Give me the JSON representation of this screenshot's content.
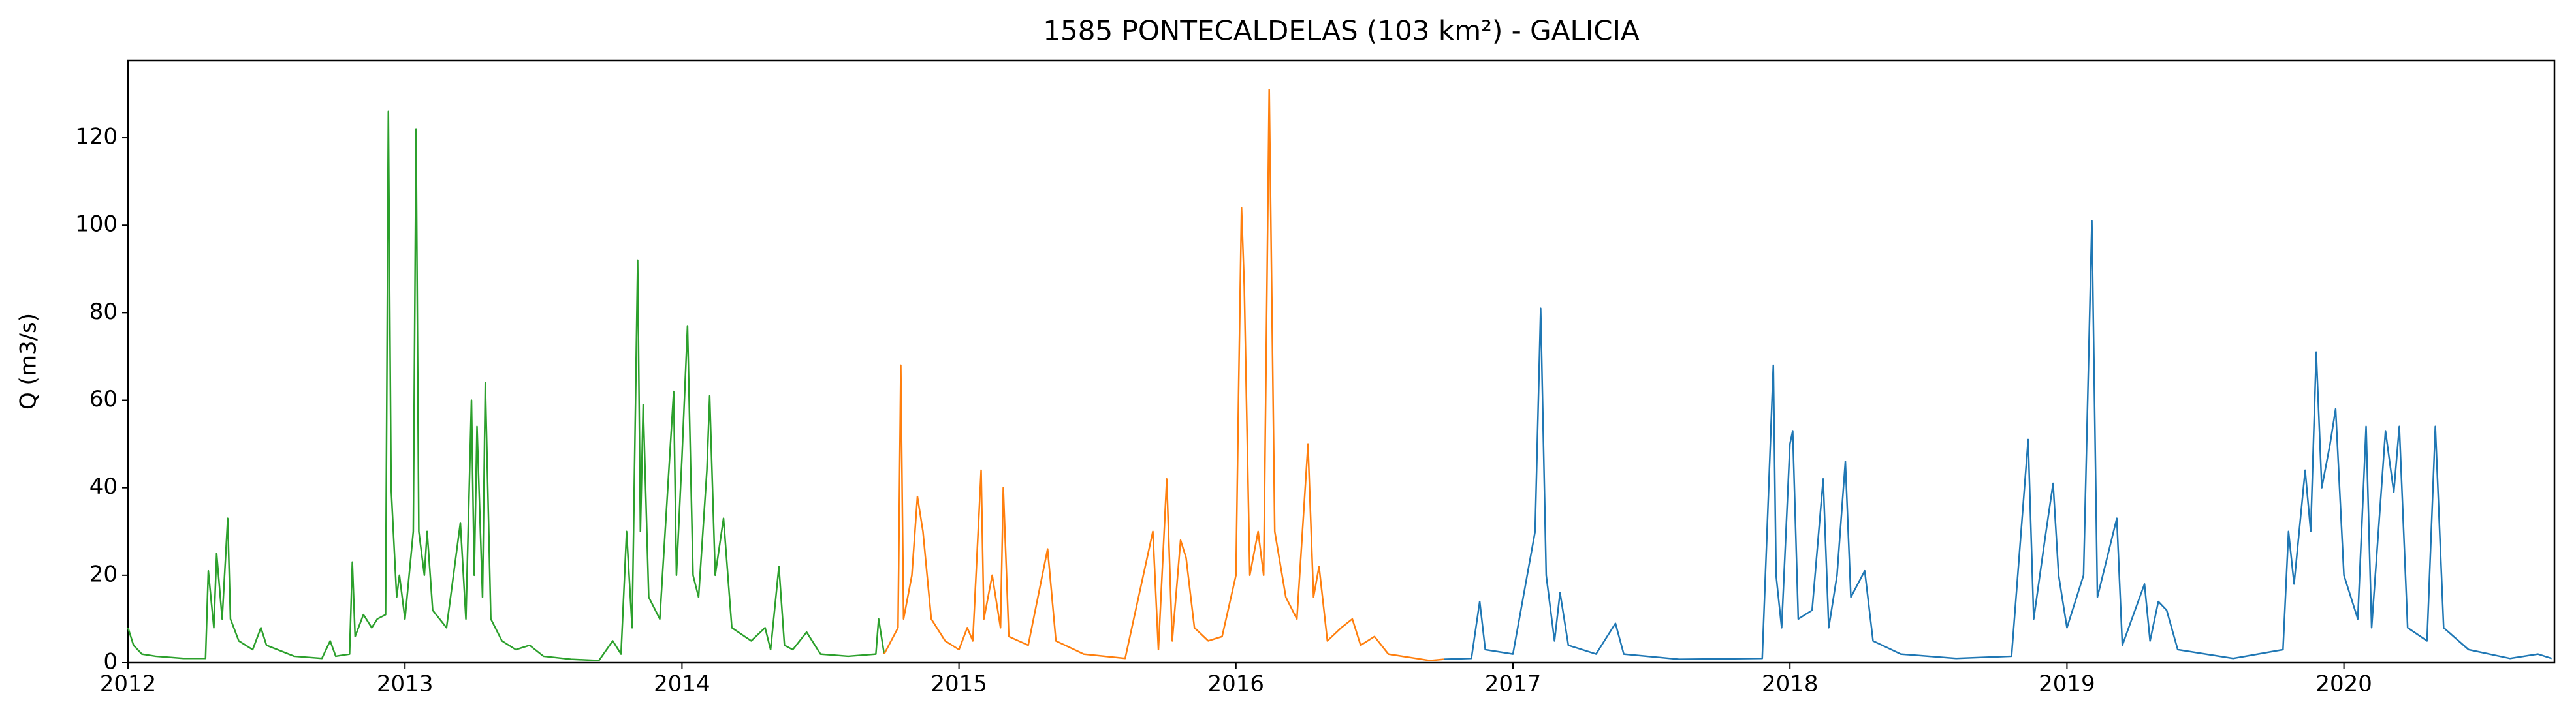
{
  "chart_data": {
    "type": "line",
    "title": "1585 PONTECALDELAS (103 km²) - GALICIA",
    "y_label": "Q (m3/s)",
    "xlim": [
      2012,
      2020.76
    ],
    "xticks": [
      2012,
      2013,
      2014,
      2015,
      2016,
      2017,
      2018,
      2019,
      2020
    ],
    "ylim": [
      0,
      137.6
    ],
    "yticks": [
      0,
      20,
      40,
      60,
      80,
      100,
      120
    ],
    "series": [
      {
        "color": "#2ca02c",
        "x": [
          2012.0,
          2012.02,
          2012.05,
          2012.1,
          2012.2,
          2012.28,
          2012.29,
          2012.31,
          2012.32,
          2012.34,
          2012.36,
          2012.37,
          2012.4,
          2012.45,
          2012.48,
          2012.5,
          2012.6,
          2012.7,
          2012.73,
          2012.75,
          2012.8,
          2012.81,
          2012.82,
          2012.85,
          2012.88,
          2012.9,
          2012.93,
          2012.94,
          2012.95,
          2012.97,
          2012.98,
          2013.0,
          2013.03,
          2013.04,
          2013.05,
          2013.07,
          2013.08,
          2013.1,
          2013.15,
          2013.2,
          2013.22,
          2013.24,
          2013.25,
          2013.26,
          2013.28,
          2013.29,
          2013.31,
          2013.35,
          2013.4,
          2013.45,
          2013.5,
          2013.6,
          2013.7,
          2013.75,
          2013.78,
          2013.8,
          2013.82,
          2013.84,
          2013.85,
          2013.86,
          2013.88,
          2013.92,
          2013.97,
          2013.98,
          2014.0,
          2014.02,
          2014.04,
          2014.06,
          2014.09,
          2014.1,
          2014.12,
          2014.15,
          2014.18,
          2014.25,
          2014.3,
          2014.32,
          2014.35,
          2014.37,
          2014.4,
          2014.45,
          2014.5,
          2014.6,
          2014.7,
          2014.71,
          2014.73
        ],
        "values": [
          8,
          4,
          2,
          1.5,
          1,
          1,
          21,
          8,
          25,
          10,
          33,
          10,
          5,
          3,
          8,
          4,
          1.5,
          1,
          5,
          1.5,
          2,
          23,
          6,
          11,
          8,
          10,
          11,
          126,
          40,
          15,
          20,
          10,
          30,
          122,
          30,
          20,
          30,
          12,
          8,
          32,
          10,
          60,
          20,
          54,
          15,
          64,
          10,
          5,
          3,
          4,
          1.5,
          0.8,
          0.5,
          5,
          2,
          30,
          8,
          92,
          30,
          59,
          15,
          10,
          62,
          20,
          47,
          77,
          20,
          15,
          44,
          61,
          20,
          33,
          8,
          5,
          8,
          3,
          22,
          4,
          3,
          7,
          2,
          1.5,
          2,
          10,
          2
        ]
      },
      {
        "color": "#ff7f0e",
        "x": [
          2014.73,
          2014.78,
          2014.79,
          2014.8,
          2014.83,
          2014.85,
          2014.87,
          2014.9,
          2014.95,
          2015.0,
          2015.03,
          2015.05,
          2015.08,
          2015.09,
          2015.12,
          2015.15,
          2015.16,
          2015.18,
          2015.25,
          2015.32,
          2015.35,
          2015.45,
          2015.6,
          2015.7,
          2015.72,
          2015.75,
          2015.77,
          2015.8,
          2015.82,
          2015.85,
          2015.9,
          2015.95,
          2016.0,
          2016.01,
          2016.02,
          2016.03,
          2016.05,
          2016.08,
          2016.1,
          2016.12,
          2016.14,
          2016.18,
          2016.22,
          2016.26,
          2016.28,
          2016.3,
          2016.33,
          2016.38,
          2016.42,
          2016.45,
          2016.5,
          2016.55,
          2016.7,
          2016.75
        ],
        "values": [
          2,
          8,
          68,
          10,
          20,
          38,
          30,
          10,
          5,
          3,
          8,
          5,
          44,
          10,
          20,
          8,
          40,
          6,
          4,
          26,
          5,
          2,
          1,
          30,
          3,
          42,
          5,
          28,
          24,
          8,
          5,
          6,
          20,
          64,
          104,
          86,
          20,
          30,
          20,
          131,
          30,
          15,
          10,
          50,
          15,
          22,
          5,
          8,
          10,
          4,
          6,
          2,
          0.5,
          0.8
        ]
      },
      {
        "color": "#1f77b4",
        "x": [
          2016.75,
          2016.85,
          2016.88,
          2016.9,
          2017.0,
          2017.08,
          2017.1,
          2017.12,
          2017.15,
          2017.17,
          2017.2,
          2017.3,
          2017.37,
          2017.4,
          2017.6,
          2017.9,
          2017.94,
          2017.95,
          2017.97,
          2018.0,
          2018.01,
          2018.03,
          2018.08,
          2018.12,
          2018.14,
          2018.17,
          2018.2,
          2018.22,
          2018.27,
          2018.3,
          2018.4,
          2018.6,
          2018.8,
          2018.86,
          2018.88,
          2018.92,
          2018.95,
          2018.97,
          2019.0,
          2019.06,
          2019.09,
          2019.11,
          2019.18,
          2019.2,
          2019.28,
          2019.3,
          2019.33,
          2019.36,
          2019.4,
          2019.6,
          2019.78,
          2019.8,
          2019.82,
          2019.86,
          2019.88,
          2019.9,
          2019.92,
          2019.95,
          2019.97,
          2020.0,
          2020.05,
          2020.08,
          2020.1,
          2020.15,
          2020.18,
          2020.2,
          2020.23,
          2020.3,
          2020.33,
          2020.36,
          2020.45,
          2020.6,
          2020.7,
          2020.75
        ],
        "values": [
          0.8,
          1,
          14,
          3,
          2,
          30,
          81,
          20,
          5,
          16,
          4,
          2,
          9,
          2,
          0.8,
          1,
          68,
          20,
          8,
          50,
          53,
          10,
          12,
          42,
          8,
          20,
          46,
          15,
          21,
          5,
          2,
          1,
          1.5,
          51,
          10,
          28,
          41,
          20,
          8,
          20,
          101,
          15,
          33,
          4,
          18,
          5,
          14,
          12,
          3,
          1,
          3,
          30,
          18,
          44,
          30,
          71,
          40,
          50,
          58,
          20,
          10,
          54,
          8,
          53,
          39,
          54,
          8,
          5,
          54,
          8,
          3,
          1,
          2,
          1
        ]
      }
    ]
  }
}
